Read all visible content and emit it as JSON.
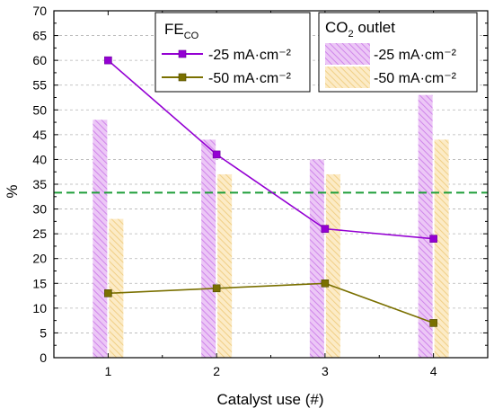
{
  "chart_data": {
    "type": "bar+line",
    "x": [
      1,
      2,
      3,
      4
    ],
    "xlabel": "Catalyst use (#)",
    "ylabel": "%",
    "ylim": [
      0,
      70
    ],
    "xlim": [
      0.5,
      4.5
    ],
    "yticks": [
      0,
      5,
      10,
      15,
      20,
      25,
      30,
      35,
      40,
      45,
      50,
      55,
      60,
      65,
      70
    ],
    "xticks": [
      1,
      2,
      3,
      4
    ],
    "reference_line": {
      "y": 33.3,
      "style": "dashed",
      "color": "#1f9e3a"
    },
    "grid": {
      "y": true,
      "style": "dashed",
      "color": "#b4b4b4"
    },
    "line_series": [
      {
        "name": "-25 mA·cm⁻²",
        "values": [
          60,
          41,
          26,
          24
        ],
        "color": "#9400d3",
        "marker": "square"
      },
      {
        "name": "-50 mA·cm⁻²",
        "values": [
          13,
          14,
          15,
          7
        ],
        "color": "#7a7000",
        "marker": "square"
      }
    ],
    "bar_series": [
      {
        "name": "-25 mA·cm⁻²",
        "values": [
          48,
          44,
          40,
          53
        ],
        "fill": "#e5b5f2",
        "hatch": "#cf7fea"
      },
      {
        "name": "-50 mA·cm⁻²",
        "values": [
          28,
          37,
          37,
          44
        ],
        "fill": "#fbe4b6",
        "hatch": "#edc677"
      }
    ],
    "legend_lines": {
      "title_main": "FE",
      "title_sub": "CO",
      "placement": "top-center"
    },
    "legend_bars": {
      "title_pre": "CO",
      "title_sub": "2",
      "title_post": " outlet",
      "placement": "top-right"
    }
  }
}
